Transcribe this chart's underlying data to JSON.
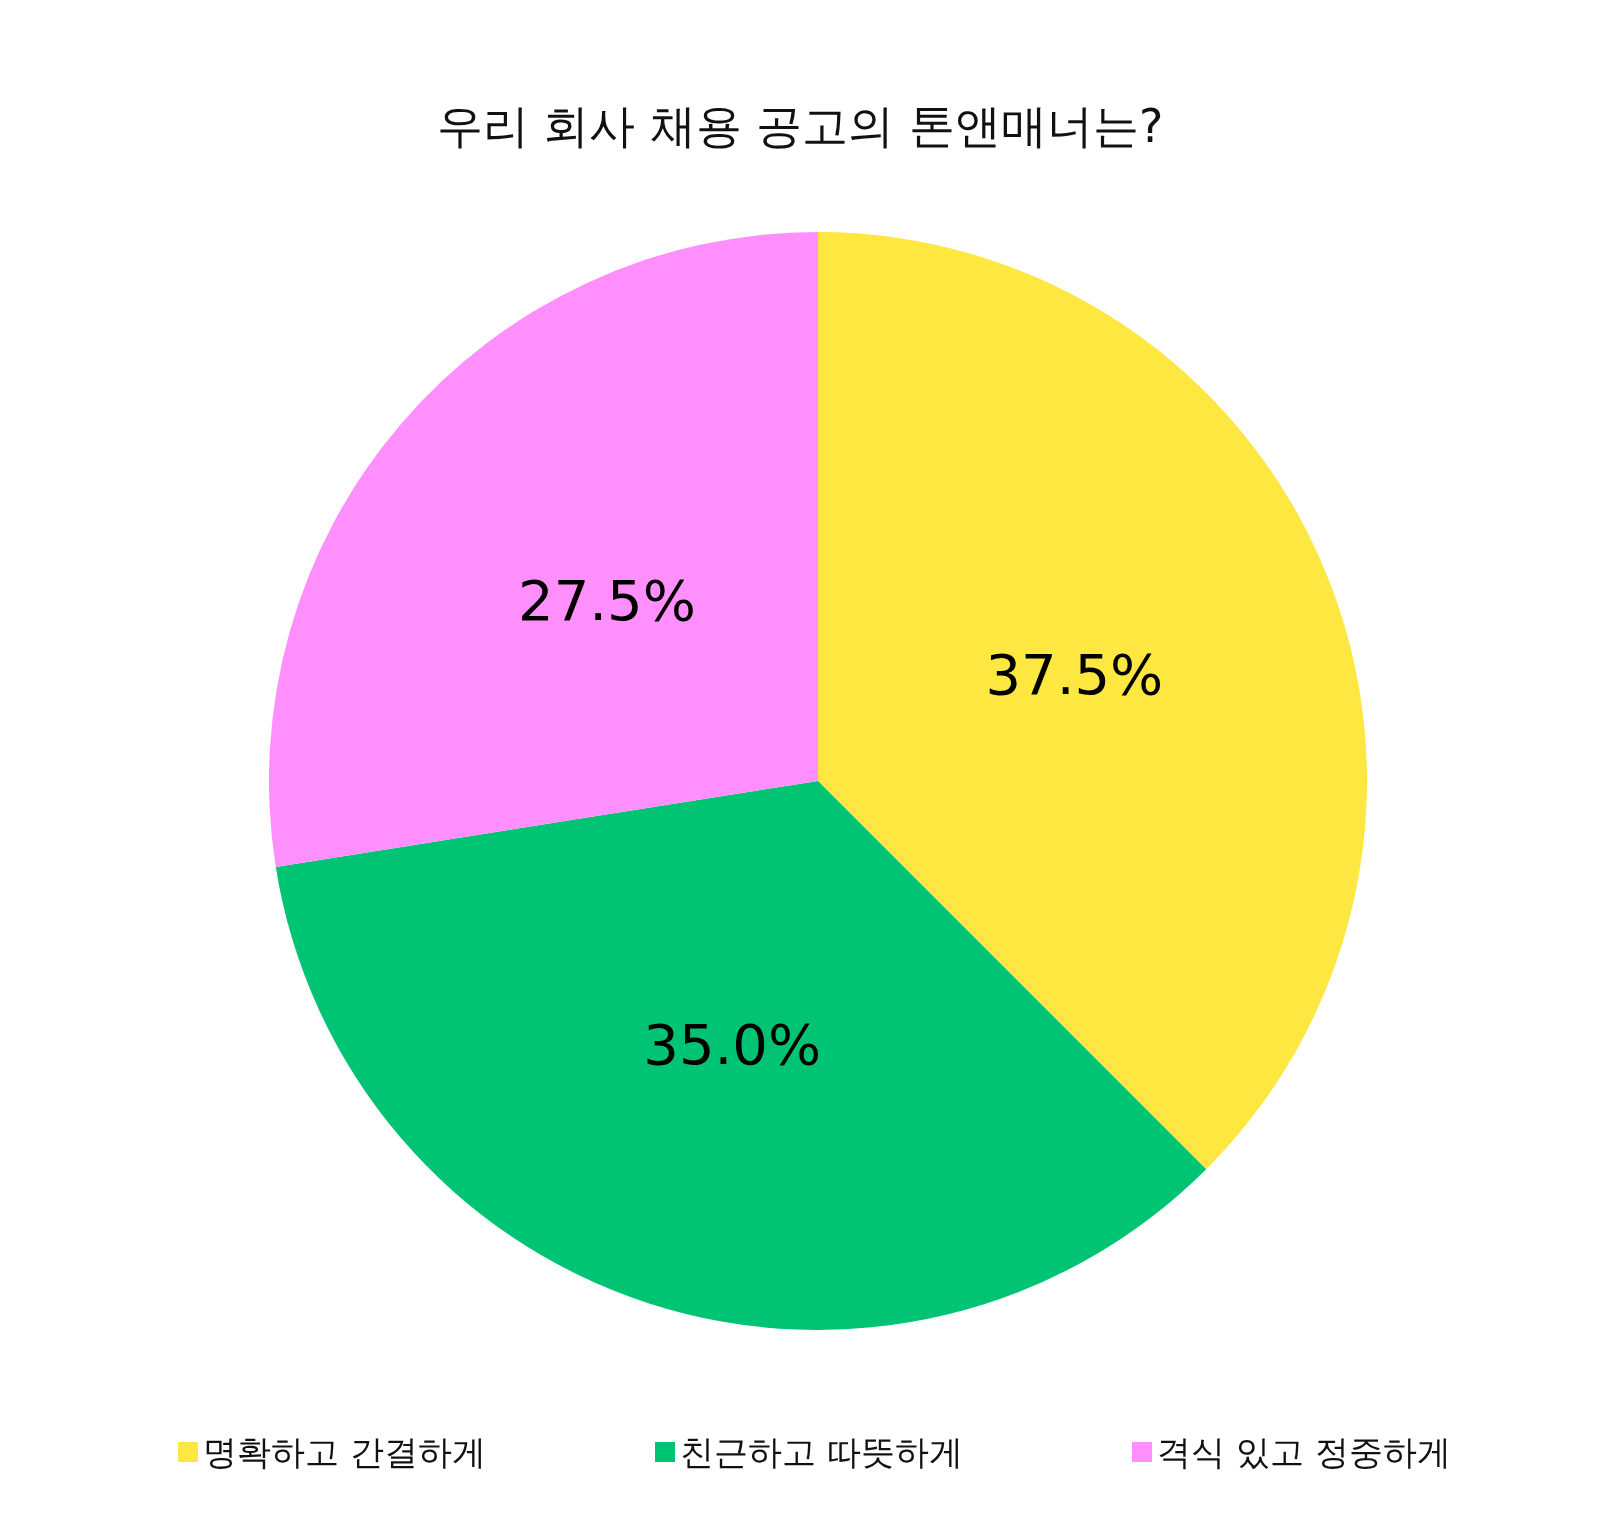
{
  "chart_data": {
    "type": "pie",
    "title": "우리 회사 채용 공고의 톤앤매너는?",
    "categories": [
      "명확하고 간결하게",
      "친근하고 따뜻하게",
      "격식 있고 정중하게"
    ],
    "values": [
      37.5,
      35.0,
      27.5
    ],
    "colors": [
      "#fde740",
      "#00c473",
      "#ff8ffd"
    ],
    "value_labels": [
      "37.5%",
      "35.0%",
      "27.5%"
    ],
    "legend": "bottom"
  }
}
